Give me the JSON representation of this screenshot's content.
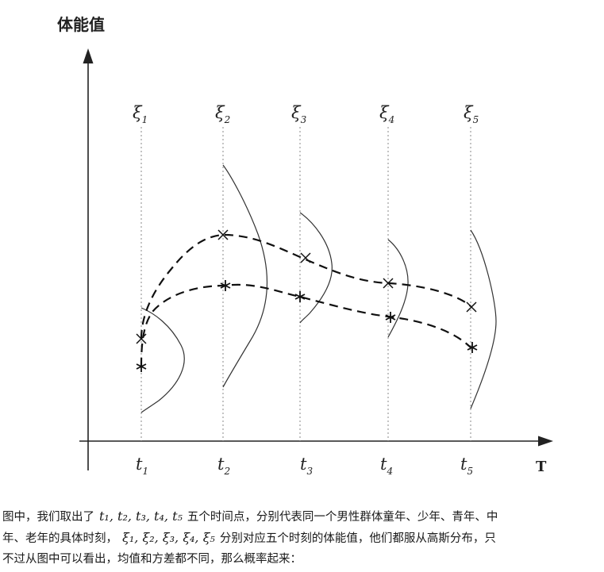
{
  "figure": {
    "y_axis_title": "体能值",
    "x_axis_title": "T",
    "time_points": [
      {
        "t": "t",
        "t_sub": "1",
        "xi": "ξ",
        "xi_sub": "1"
      },
      {
        "t": "t",
        "t_sub": "2",
        "xi": "ξ",
        "xi_sub": "2"
      },
      {
        "t": "t",
        "t_sub": "3",
        "xi": "ξ",
        "xi_sub": "3"
      },
      {
        "t": "t",
        "t_sub": "4",
        "xi": "ξ",
        "xi_sub": "4"
      },
      {
        "t": "t",
        "t_sub": "5",
        "xi": "ξ",
        "xi_sub": "5"
      }
    ],
    "line_color": "#222222",
    "guide_color": "#888888",
    "icons": [
      "x-marker-icon",
      "asterisk-marker-icon",
      "arrow-up-icon",
      "arrow-right-icon"
    ]
  },
  "caption": {
    "line1_a": "图中，我们取出了",
    "line1_math": "t₁, t₂, t₃, t₄, t₅",
    "line1_b": "五个时间点，分别代表同一个男性群体童年、少年、青年、中",
    "line2_a": "年、老年的具体时刻，",
    "line2_math": "ξ₁, ξ₂, ξ₃, ξ₄, ξ₅",
    "line2_b": "分别对应五个时刻的体能值，他们都服从高斯分布，只",
    "line3": "不过从图中可以看出，均值和方差都不同，那么概率起来："
  }
}
